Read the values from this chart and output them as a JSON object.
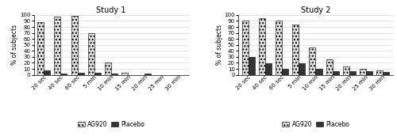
{
  "study1": {
    "title": "Study 1",
    "categories": [
      "20 sec",
      "40 sec",
      "60 sec",
      "5 min",
      "10 min",
      "15 min",
      "20 min",
      "25 min",
      "30 min"
    ],
    "ag920": [
      88,
      97,
      99,
      69,
      20,
      4,
      0,
      0,
      0
    ],
    "placebo": [
      8,
      2,
      4,
      4,
      2,
      0,
      2,
      0,
      0
    ]
  },
  "study2": {
    "title": "Study 2",
    "categories": [
      "20 sec",
      "40 sec",
      "60 sec",
      "5 min",
      "10 min",
      "15 min",
      "20 min",
      "25 min",
      "30 min"
    ],
    "ag920": [
      91,
      95,
      90,
      84,
      46,
      26,
      14,
      10,
      8
    ],
    "placebo": [
      30,
      19,
      10,
      19,
      10,
      6,
      6,
      6,
      5
    ]
  },
  "ylabel": "% of subjects",
  "ylim": [
    0,
    100
  ],
  "yticks": [
    0,
    10,
    20,
    30,
    40,
    50,
    60,
    70,
    80,
    90,
    100
  ],
  "ag920_color": "#e0e0e0",
  "ag920_hatch": "....",
  "placebo_color": "#333333",
  "bar_width": 0.38,
  "legend_labels": [
    "AG920",
    "Placebo"
  ],
  "title_fontsize": 7,
  "label_fontsize": 5.5,
  "tick_fontsize": 5,
  "legend_fontsize": 5.5,
  "bg_color": "#ffffff"
}
